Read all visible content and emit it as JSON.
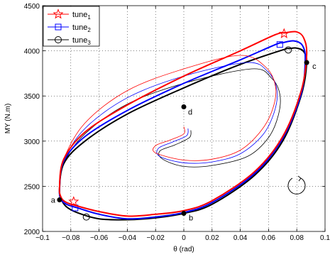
{
  "chart_data": {
    "type": "line",
    "title": "",
    "xlabel": "θ (rad)",
    "ylabel": "MY (N.m)",
    "xlim": [
      -0.1,
      0.1
    ],
    "ylim": [
      2000,
      4500
    ],
    "grid": true,
    "xticks": [
      "−0.1",
      "−0.08",
      "−0.06",
      "−0.04",
      "−0.02",
      "0",
      "0.02",
      "0.04",
      "0.06",
      "0.08",
      "0.1"
    ],
    "xtick_values": [
      -0.1,
      -0.08,
      -0.06,
      -0.04,
      -0.02,
      0,
      0.02,
      0.04,
      0.06,
      0.08,
      0.1
    ],
    "yticks": [
      "2000",
      "2500",
      "3000",
      "3500",
      "4000",
      "4500"
    ],
    "ytick_values": [
      2000,
      2500,
      3000,
      3500,
      4000,
      4500
    ],
    "legend": {
      "placement": "top-left",
      "entries": [
        {
          "base": "tune",
          "sub": "1",
          "color": "#ff0000",
          "marker": "star"
        },
        {
          "base": "tune",
          "sub": "2",
          "color": "#0000ff",
          "marker": "square"
        },
        {
          "base": "tune",
          "sub": "3",
          "color": "#000000",
          "marker": "circle"
        }
      ]
    },
    "series": [
      {
        "color": "#ff0000",
        "marker": "star",
        "loop": [
          [
            0.065,
            4180
          ],
          [
            0.04,
            4000
          ],
          [
            0.0,
            3720
          ],
          [
            -0.04,
            3400
          ],
          [
            -0.07,
            3100
          ],
          [
            -0.085,
            2800
          ],
          [
            -0.088,
            2500
          ],
          [
            -0.087,
            2380
          ],
          [
            -0.083,
            2320
          ],
          [
            -0.075,
            2280
          ],
          [
            -0.06,
            2220
          ],
          [
            -0.04,
            2170
          ],
          [
            -0.02,
            2190
          ],
          [
            0.0,
            2230
          ],
          [
            0.02,
            2340
          ],
          [
            0.05,
            2660
          ],
          [
            0.07,
            3050
          ],
          [
            0.083,
            3550
          ],
          [
            0.087,
            3950
          ],
          [
            0.085,
            4140
          ],
          [
            0.08,
            4210
          ],
          [
            0.072,
            4200
          ]
        ],
        "transient": [
          [
            0.0,
            3160
          ],
          [
            0.0,
            3080
          ],
          [
            -0.01,
            3010
          ],
          [
            -0.02,
            2950
          ],
          [
            -0.02,
            2870
          ],
          [
            0.0,
            2790
          ],
          [
            0.02,
            2800
          ],
          [
            0.04,
            2900
          ],
          [
            0.055,
            3120
          ],
          [
            0.063,
            3360
          ],
          [
            0.065,
            3600
          ],
          [
            0.058,
            3820
          ],
          [
            0.04,
            3950
          ],
          [
            0.0,
            3800
          ],
          [
            -0.04,
            3560
          ],
          [
            -0.07,
            3200
          ],
          [
            -0.085,
            2800
          ],
          [
            -0.088,
            2500
          ]
        ],
        "markers": [
          [
            0.071,
            4190
          ],
          [
            -0.078,
            2330
          ]
        ]
      },
      {
        "color": "#0000ff",
        "marker": "square",
        "loop": [
          [
            0.065,
            4070
          ],
          [
            0.04,
            3900
          ],
          [
            0.0,
            3640
          ],
          [
            -0.04,
            3340
          ],
          [
            -0.07,
            3050
          ],
          [
            -0.085,
            2780
          ],
          [
            -0.088,
            2480
          ],
          [
            -0.087,
            2360
          ],
          [
            -0.083,
            2300
          ],
          [
            -0.075,
            2260
          ],
          [
            -0.06,
            2190
          ],
          [
            -0.04,
            2140
          ],
          [
            -0.02,
            2160
          ],
          [
            0.0,
            2210
          ],
          [
            0.02,
            2320
          ],
          [
            0.05,
            2640
          ],
          [
            0.07,
            3030
          ],
          [
            0.083,
            3520
          ],
          [
            0.086,
            3900
          ],
          [
            0.084,
            4060
          ],
          [
            0.078,
            4110
          ],
          [
            0.07,
            4090
          ]
        ],
        "transient": [
          [
            0.003,
            3140
          ],
          [
            0.002,
            3060
          ],
          [
            -0.008,
            2990
          ],
          [
            -0.018,
            2920
          ],
          [
            -0.017,
            2830
          ],
          [
            0.0,
            2760
          ],
          [
            0.02,
            2770
          ],
          [
            0.04,
            2860
          ],
          [
            0.056,
            3070
          ],
          [
            0.064,
            3320
          ],
          [
            0.066,
            3560
          ],
          [
            0.06,
            3760
          ],
          [
            0.045,
            3870
          ],
          [
            0.0,
            3720
          ],
          [
            -0.04,
            3480
          ],
          [
            -0.07,
            3140
          ],
          [
            -0.085,
            2780
          ],
          [
            -0.088,
            2480
          ]
        ],
        "markers": [
          [
            0.068,
            4070
          ],
          [
            -0.077,
            2260
          ]
        ]
      },
      {
        "color": "#000000",
        "marker": "circle",
        "loop": [
          [
            0.07,
            4010
          ],
          [
            0.04,
            3850
          ],
          [
            0.0,
            3590
          ],
          [
            -0.04,
            3300
          ],
          [
            -0.07,
            3000
          ],
          [
            -0.085,
            2750
          ],
          [
            -0.088,
            2440
          ],
          [
            -0.086,
            2330
          ],
          [
            -0.082,
            2260
          ],
          [
            -0.074,
            2200
          ],
          [
            -0.06,
            2140
          ],
          [
            -0.04,
            2130
          ],
          [
            -0.02,
            2150
          ],
          [
            0.0,
            2200
          ],
          [
            0.02,
            2300
          ],
          [
            0.05,
            2620
          ],
          [
            0.07,
            3000
          ],
          [
            0.083,
            3500
          ],
          [
            0.087,
            3860
          ],
          [
            0.085,
            3990
          ],
          [
            0.08,
            4030
          ],
          [
            0.075,
            4025
          ]
        ],
        "transient": [
          [
            0.005,
            3120
          ],
          [
            0.004,
            3040
          ],
          [
            -0.006,
            2960
          ],
          [
            -0.017,
            2890
          ],
          [
            -0.015,
            2800
          ],
          [
            0.0,
            2720
          ],
          [
            0.02,
            2730
          ],
          [
            0.045,
            2830
          ],
          [
            0.06,
            3040
          ],
          [
            0.067,
            3290
          ],
          [
            0.068,
            3520
          ],
          [
            0.062,
            3700
          ],
          [
            0.048,
            3800
          ],
          [
            0.0,
            3640
          ],
          [
            -0.04,
            3410
          ],
          [
            -0.07,
            3080
          ],
          [
            -0.085,
            2750
          ],
          [
            -0.088,
            2440
          ]
        ],
        "markers": [
          [
            0.074,
            4010
          ],
          [
            -0.069,
            2160
          ]
        ]
      }
    ],
    "points": [
      {
        "label": "a",
        "x": -0.088,
        "y": 2350
      },
      {
        "label": "b",
        "x": 0.0,
        "y": 2200
      },
      {
        "label": "c",
        "x": 0.087,
        "y": 3870
      },
      {
        "label": "d",
        "x": 0.0,
        "y": 3380
      }
    ]
  }
}
